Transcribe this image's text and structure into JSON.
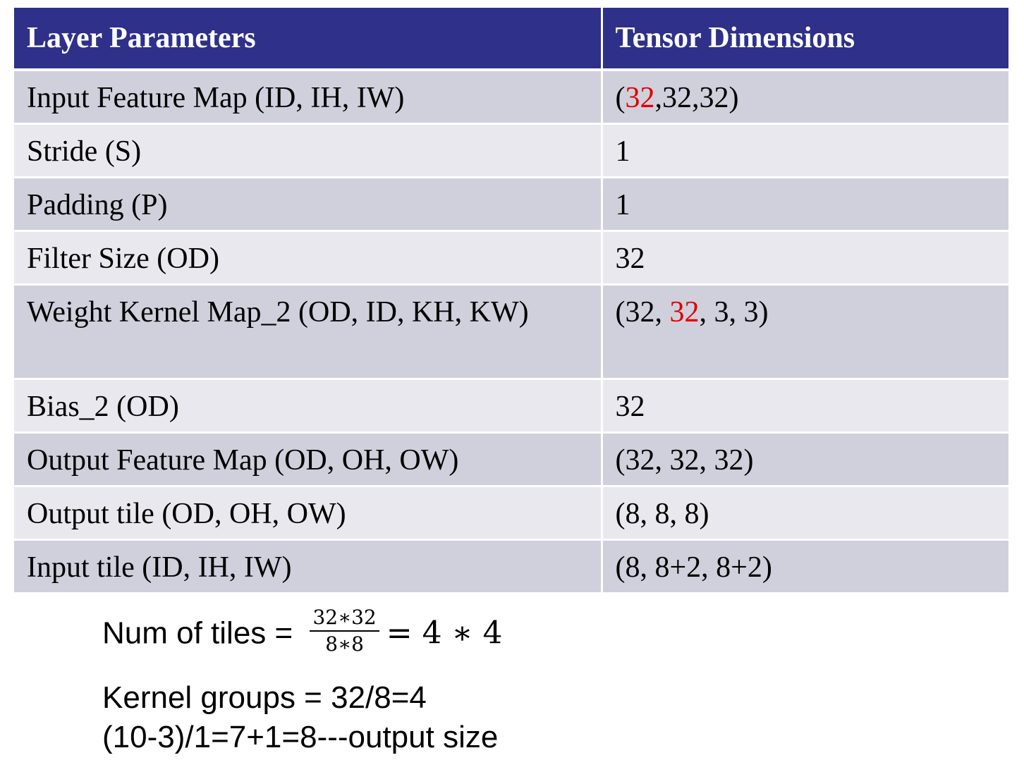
{
  "table": {
    "headers": [
      "Layer Parameters",
      "Tensor Dimensions"
    ],
    "rows": [
      {
        "param": "Input Feature Map (ID, IH, IW)",
        "dim_pre": "(",
        "dim_red": "32",
        "dim_post": ",32,32)"
      },
      {
        "param": "Stride (S)",
        "dim_pre": "1",
        "dim_red": "",
        "dim_post": ""
      },
      {
        "param": "Padding (P)",
        "dim_pre": "1",
        "dim_red": "",
        "dim_post": ""
      },
      {
        "param": "Filter Size (OD)",
        "dim_pre": "32",
        "dim_red": "",
        "dim_post": ""
      },
      {
        "param": "Weight Kernel Map_2 (OD, ID, KH, KW)",
        "dim_pre": "(32, ",
        "dim_red": "32",
        "dim_post": ", 3, 3)"
      },
      {
        "param": "Bias_2 (OD)",
        "dim_pre": "32",
        "dim_red": "",
        "dim_post": ""
      },
      {
        "param": "Output Feature Map (OD, OH, OW)",
        "dim_pre": "(32, 32, 32)",
        "dim_red": "",
        "dim_post": ""
      },
      {
        "param": "Output tile (OD, OH, OW)",
        "dim_pre": "(8, 8, 8)",
        "dim_red": "",
        "dim_post": ""
      },
      {
        "param": "Input tile (ID, IH, IW)",
        "dim_pre": "(8, 8+2, 8+2)",
        "dim_red": "",
        "dim_post": ""
      }
    ],
    "highlight_color": "#e00000",
    "header_color": "#2e3089"
  },
  "notes": {
    "tiles_label": "Num of tiles = ",
    "tiles_numerator": "32∗32",
    "tiles_denominator": "8∗8",
    "tiles_result": "= 4 ∗ 4",
    "kernel_groups": "Kernel groups = 32/8=4",
    "output_size": "(10-3)/1=7+1=8---output size"
  }
}
